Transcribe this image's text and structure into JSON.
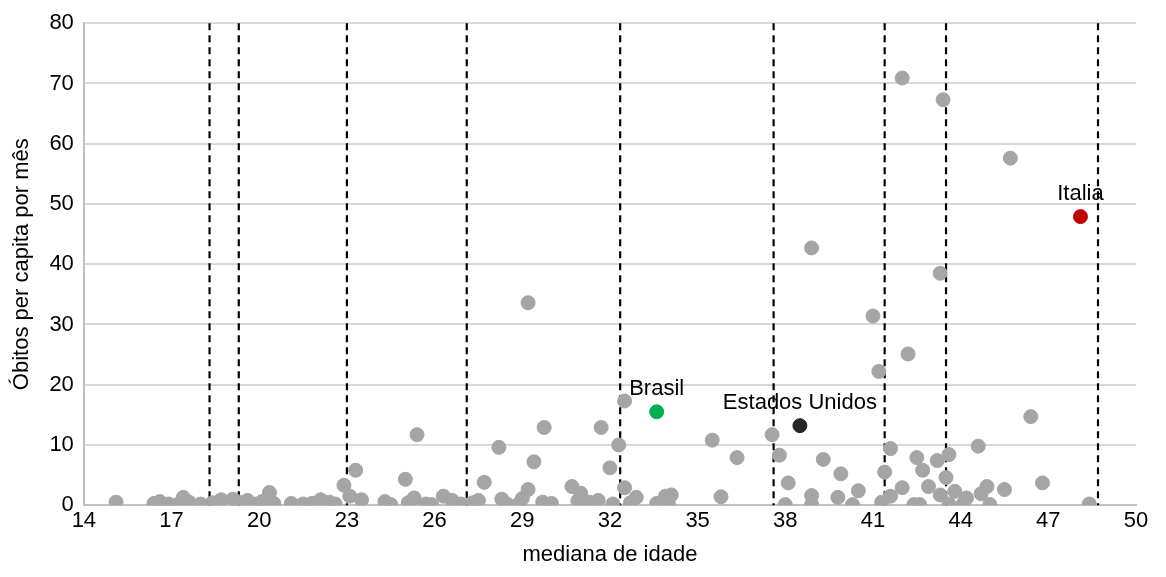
{
  "chart_data": {
    "type": "scatter",
    "xlabel": "mediana de idade",
    "ylabel": "Óbitos per capita por mês",
    "xlim": [
      14,
      50
    ],
    "xticks": [
      14,
      17,
      20,
      23,
      26,
      29,
      32,
      35,
      38,
      41,
      44,
      47,
      50
    ],
    "ylim": [
      0,
      80
    ],
    "yticks": [
      0,
      10,
      20,
      30,
      40,
      50,
      60,
      70,
      80
    ],
    "grid": "y",
    "legend": false,
    "marker": "circle",
    "ref_lines": [
      {
        "axis": "x",
        "value": 18.3,
        "color": "#000000",
        "line_style": "dashed"
      },
      {
        "axis": "x",
        "value": 19.3,
        "color": "#000000",
        "line_style": "dashed"
      },
      {
        "axis": "x",
        "value": 23.0,
        "color": "#000000",
        "line_style": "dashed"
      },
      {
        "axis": "x",
        "value": 27.1,
        "color": "#000000",
        "line_style": "dashed"
      },
      {
        "axis": "x",
        "value": 32.35,
        "color": "#000000",
        "line_style": "dashed"
      },
      {
        "axis": "x",
        "value": 37.6,
        "color": "#000000",
        "line_style": "dashed"
      },
      {
        "axis": "x",
        "value": 41.4,
        "color": "#000000",
        "line_style": "dashed"
      },
      {
        "axis": "x",
        "value": 43.5,
        "color": "#000000",
        "line_style": "dashed"
      },
      {
        "axis": "x",
        "value": 48.7,
        "color": "#000000",
        "line_style": "dashed"
      }
    ],
    "series": [
      {
        "color": "#a5a5a5",
        "x": [
          15.1,
          16.4,
          16.6,
          16.9,
          17.2,
          17.4,
          17.6,
          18.0,
          18.4,
          18.7,
          19.1,
          19.3,
          19.6,
          19.9,
          20.1,
          20.35,
          20.5,
          21.1,
          21.5,
          21.8,
          22.1,
          22.4,
          22.6,
          22.9,
          23.1,
          23.3,
          23.5,
          24.3,
          24.5,
          25.0,
          25.1,
          25.3,
          25.4,
          25.7,
          25.9,
          26.3,
          26.6,
          26.9,
          27.3,
          27.5,
          27.7,
          28.2,
          28.3,
          28.5,
          28.9,
          29.0,
          29.2,
          29.2,
          29.4,
          29.75,
          29.7,
          30.0,
          30.7,
          30.9,
          31.0,
          31.3,
          31.6,
          31.7,
          32.0,
          32.1,
          32.3,
          32.5,
          32.5,
          32.7,
          32.9,
          33.6,
          33.9,
          34.0,
          34.1,
          35.5,
          35.8,
          36.35,
          37.55,
          37.8,
          38.0,
          38.1,
          38.9,
          38.9,
          38.9,
          39.3,
          39.8,
          39.9,
          40.3,
          40.5,
          41.0,
          41.2,
          41.3,
          41.4,
          41.6,
          41.6,
          42.0,
          42.0,
          42.2,
          42.4,
          42.5,
          42.6,
          42.7,
          42.9,
          43.2,
          43.3,
          43.3,
          43.4,
          43.5,
          43.6,
          43.6,
          43.8,
          44.1,
          44.2,
          44.6,
          44.7,
          44.9,
          45.0,
          45.5,
          45.7,
          46.4,
          46.8,
          48.4
        ],
        "values": [
          0.5,
          0.3,
          0.6,
          0.2,
          0.1,
          1.3,
          0.5,
          0.2,
          0.4,
          0.9,
          1.0,
          0.5,
          0.8,
          0.2,
          0.6,
          2.1,
          0.3,
          0.3,
          0.2,
          0.3,
          0.9,
          0.5,
          0.2,
          3.3,
          1.5,
          5.8,
          0.9,
          0.6,
          0.1,
          4.3,
          0.4,
          1.2,
          11.7,
          0.2,
          0.1,
          1.5,
          0.8,
          0.2,
          0.4,
          0.8,
          3.8,
          9.6,
          1.0,
          0.1,
          0.3,
          1.1,
          2.6,
          33.6,
          7.2,
          12.9,
          0.5,
          0.3,
          3.1,
          0.7,
          2.0,
          0.5,
          0.8,
          12.9,
          6.2,
          0.2,
          10.0,
          17.3,
          2.9,
          0.4,
          1.3,
          0.3,
          1.5,
          0.2,
          1.7,
          10.8,
          1.4,
          7.9,
          11.7,
          8.3,
          0.1,
          3.7,
          42.7,
          1.6,
          0.1,
          7.6,
          1.3,
          5.2,
          0.1,
          2.4,
          31.4,
          22.2,
          0.5,
          5.5,
          9.4,
          1.5,
          70.9,
          2.9,
          25.1,
          0.1,
          7.9,
          0.1,
          5.8,
          3.1,
          7.4,
          38.5,
          1.7,
          67.3,
          4.6,
          8.4,
          0.2,
          2.3,
          0.3,
          1.2,
          9.8,
          1.9,
          3.1,
          0.1,
          2.6,
          57.6,
          14.7,
          3.7,
          0.2
        ]
      },
      {
        "name": "Brasil",
        "color": "#00b050",
        "x": [
          33.6
        ],
        "values": [
          15.5
        ]
      },
      {
        "name": "Estados Unidos",
        "color": "#262626",
        "x": [
          38.5
        ],
        "values": [
          13.2
        ]
      },
      {
        "name": "Italia",
        "color": "#c00000",
        "x": [
          48.1
        ],
        "values": [
          47.9
        ]
      }
    ]
  }
}
